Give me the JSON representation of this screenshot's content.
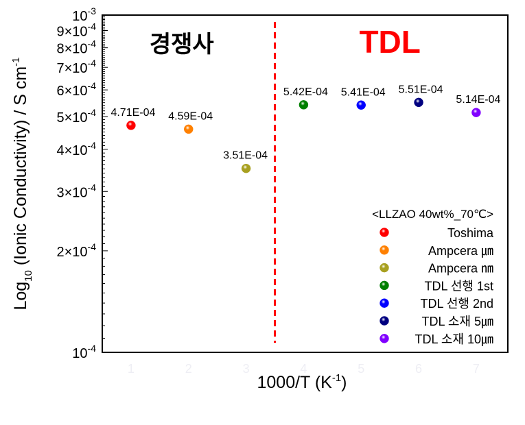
{
  "chart_data": {
    "type": "scatter",
    "xlabel": "1000/T (K",
    "xlabel_sup": "-1",
    "xlabel_close": ")",
    "ylabel": "Log",
    "ylabel_sub": "10",
    "ylabel_rest": " (Ionic Conductivity) / S cm",
    "ylabel_sup": "-1",
    "yscale": "log",
    "ylim": [
      0.0001,
      0.001
    ],
    "xlim": [
      0.5,
      7.55
    ],
    "x_ticks": [
      "1",
      "2",
      "3",
      "4",
      "5",
      "6",
      "7"
    ],
    "y_ticks": [
      {
        "value": 0.001,
        "mant": "10",
        "exp": "-3"
      },
      {
        "value": 0.0009,
        "mant": "9×10",
        "exp": "-4"
      },
      {
        "value": 0.0008,
        "mant": "8×10",
        "exp": "-4"
      },
      {
        "value": 0.0007,
        "mant": "7×10",
        "exp": "-4"
      },
      {
        "value": 0.0006,
        "mant": "6×10",
        "exp": "-4"
      },
      {
        "value": 0.0005,
        "mant": "5×10",
        "exp": "-4"
      },
      {
        "value": 0.0004,
        "mant": "4×10",
        "exp": "-4"
      },
      {
        "value": 0.0003,
        "mant": "3×10",
        "exp": "-4"
      },
      {
        "value": 0.0002,
        "mant": "2×10",
        "exp": "-4"
      },
      {
        "value": 0.0001,
        "mant": "10",
        "exp": "-4"
      }
    ],
    "grid": false,
    "divider_x": 3.5,
    "divider_color": "#ff0000",
    "region_labels": [
      {
        "text": "경쟁사",
        "color": "#000000",
        "x": 2
      },
      {
        "text": "TDL",
        "color": "#ff0000",
        "x": 5.5
      }
    ],
    "legend": {
      "title": "<LLZAO 40wt%_70℃>",
      "position": "bottom-right"
    },
    "series": [
      {
        "name": "Toshima",
        "x": 1,
        "y": 0.000471,
        "label": "4.71E-04",
        "color": "#ff0000"
      },
      {
        "name": "Ampcera ㎛",
        "x": 2,
        "y": 0.000459,
        "label": "4.59E-04",
        "color": "#ff8000"
      },
      {
        "name": "Ampcera ㎚",
        "x": 3,
        "y": 0.000351,
        "label": "3.51E-04",
        "color": "#a8a020"
      },
      {
        "name": "TDL 선행 1st",
        "x": 4,
        "y": 0.000542,
        "label": "5.42E-04",
        "color": "#008000"
      },
      {
        "name": "TDL 선행 2nd",
        "x": 5,
        "y": 0.000541,
        "label": "5.41E-04",
        "color": "#0000ff"
      },
      {
        "name": "TDL 소재 5㎛",
        "x": 6,
        "y": 0.000551,
        "label": "5.51E-04",
        "color": "#000080"
      },
      {
        "name": "TDL 소재 10㎛",
        "x": 7,
        "y": 0.000514,
        "label": "5.14E-04",
        "color": "#8000ff"
      }
    ]
  }
}
